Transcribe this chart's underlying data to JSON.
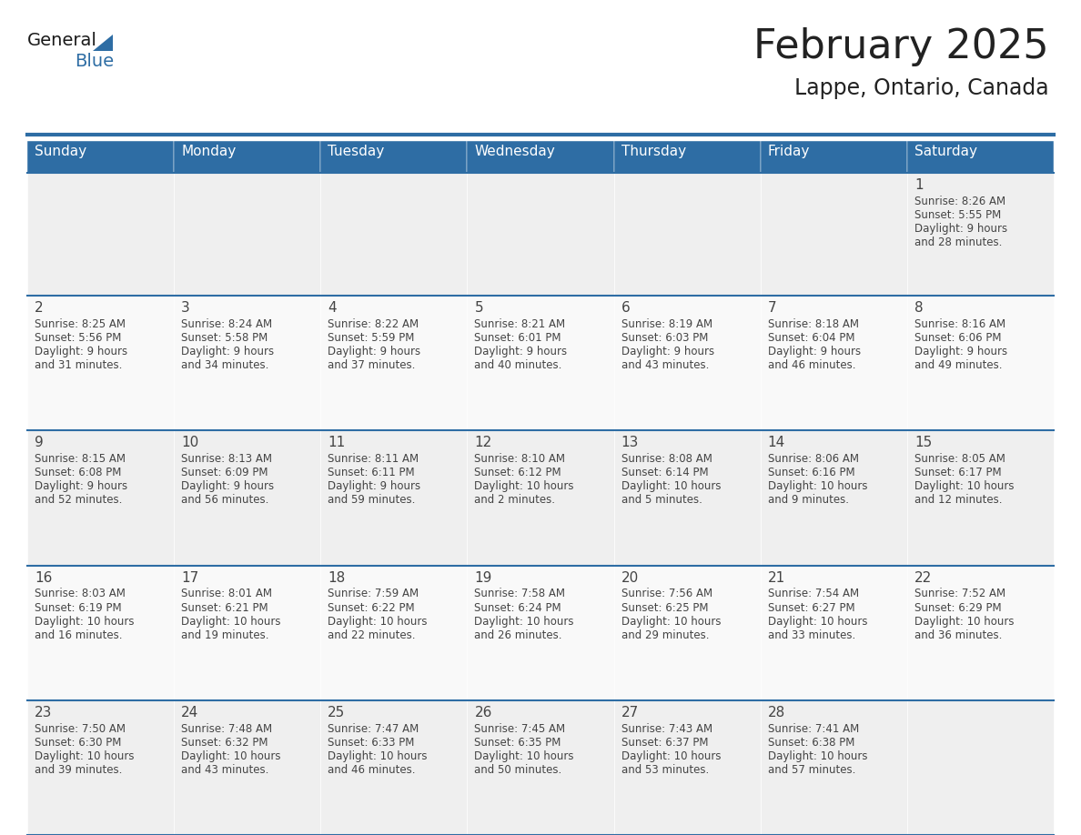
{
  "title": "February 2025",
  "subtitle": "Lappe, Ontario, Canada",
  "header_bg": "#2E6DA4",
  "header_text_color": "#FFFFFF",
  "cell_bg_odd": "#EFEFEF",
  "cell_bg_even": "#F9F9F9",
  "day_headers": [
    "Sunday",
    "Monday",
    "Tuesday",
    "Wednesday",
    "Thursday",
    "Friday",
    "Saturday"
  ],
  "text_color": "#444444",
  "day_num_color": "#222222",
  "line_color": "#2E6DA4",
  "days": [
    {
      "day": 1,
      "col": 6,
      "row": 0,
      "sunrise": "8:26 AM",
      "sunset": "5:55 PM",
      "daylight": "9 hours and 28 minutes"
    },
    {
      "day": 2,
      "col": 0,
      "row": 1,
      "sunrise": "8:25 AM",
      "sunset": "5:56 PM",
      "daylight": "9 hours and 31 minutes"
    },
    {
      "day": 3,
      "col": 1,
      "row": 1,
      "sunrise": "8:24 AM",
      "sunset": "5:58 PM",
      "daylight": "9 hours and 34 minutes"
    },
    {
      "day": 4,
      "col": 2,
      "row": 1,
      "sunrise": "8:22 AM",
      "sunset": "5:59 PM",
      "daylight": "9 hours and 37 minutes"
    },
    {
      "day": 5,
      "col": 3,
      "row": 1,
      "sunrise": "8:21 AM",
      "sunset": "6:01 PM",
      "daylight": "9 hours and 40 minutes"
    },
    {
      "day": 6,
      "col": 4,
      "row": 1,
      "sunrise": "8:19 AM",
      "sunset": "6:03 PM",
      "daylight": "9 hours and 43 minutes"
    },
    {
      "day": 7,
      "col": 5,
      "row": 1,
      "sunrise": "8:18 AM",
      "sunset": "6:04 PM",
      "daylight": "9 hours and 46 minutes"
    },
    {
      "day": 8,
      "col": 6,
      "row": 1,
      "sunrise": "8:16 AM",
      "sunset": "6:06 PM",
      "daylight": "9 hours and 49 minutes"
    },
    {
      "day": 9,
      "col": 0,
      "row": 2,
      "sunrise": "8:15 AM",
      "sunset": "6:08 PM",
      "daylight": "9 hours and 52 minutes"
    },
    {
      "day": 10,
      "col": 1,
      "row": 2,
      "sunrise": "8:13 AM",
      "sunset": "6:09 PM",
      "daylight": "9 hours and 56 minutes"
    },
    {
      "day": 11,
      "col": 2,
      "row": 2,
      "sunrise": "8:11 AM",
      "sunset": "6:11 PM",
      "daylight": "9 hours and 59 minutes"
    },
    {
      "day": 12,
      "col": 3,
      "row": 2,
      "sunrise": "8:10 AM",
      "sunset": "6:12 PM",
      "daylight": "10 hours and 2 minutes"
    },
    {
      "day": 13,
      "col": 4,
      "row": 2,
      "sunrise": "8:08 AM",
      "sunset": "6:14 PM",
      "daylight": "10 hours and 5 minutes"
    },
    {
      "day": 14,
      "col": 5,
      "row": 2,
      "sunrise": "8:06 AM",
      "sunset": "6:16 PM",
      "daylight": "10 hours and 9 minutes"
    },
    {
      "day": 15,
      "col": 6,
      "row": 2,
      "sunrise": "8:05 AM",
      "sunset": "6:17 PM",
      "daylight": "10 hours and 12 minutes"
    },
    {
      "day": 16,
      "col": 0,
      "row": 3,
      "sunrise": "8:03 AM",
      "sunset": "6:19 PM",
      "daylight": "10 hours and 16 minutes"
    },
    {
      "day": 17,
      "col": 1,
      "row": 3,
      "sunrise": "8:01 AM",
      "sunset": "6:21 PM",
      "daylight": "10 hours and 19 minutes"
    },
    {
      "day": 18,
      "col": 2,
      "row": 3,
      "sunrise": "7:59 AM",
      "sunset": "6:22 PM",
      "daylight": "10 hours and 22 minutes"
    },
    {
      "day": 19,
      "col": 3,
      "row": 3,
      "sunrise": "7:58 AM",
      "sunset": "6:24 PM",
      "daylight": "10 hours and 26 minutes"
    },
    {
      "day": 20,
      "col": 4,
      "row": 3,
      "sunrise": "7:56 AM",
      "sunset": "6:25 PM",
      "daylight": "10 hours and 29 minutes"
    },
    {
      "day": 21,
      "col": 5,
      "row": 3,
      "sunrise": "7:54 AM",
      "sunset": "6:27 PM",
      "daylight": "10 hours and 33 minutes"
    },
    {
      "day": 22,
      "col": 6,
      "row": 3,
      "sunrise": "7:52 AM",
      "sunset": "6:29 PM",
      "daylight": "10 hours and 36 minutes"
    },
    {
      "day": 23,
      "col": 0,
      "row": 4,
      "sunrise": "7:50 AM",
      "sunset": "6:30 PM",
      "daylight": "10 hours and 39 minutes"
    },
    {
      "day": 24,
      "col": 1,
      "row": 4,
      "sunrise": "7:48 AM",
      "sunset": "6:32 PM",
      "daylight": "10 hours and 43 minutes"
    },
    {
      "day": 25,
      "col": 2,
      "row": 4,
      "sunrise": "7:47 AM",
      "sunset": "6:33 PM",
      "daylight": "10 hours and 46 minutes"
    },
    {
      "day": 26,
      "col": 3,
      "row": 4,
      "sunrise": "7:45 AM",
      "sunset": "6:35 PM",
      "daylight": "10 hours and 50 minutes"
    },
    {
      "day": 27,
      "col": 4,
      "row": 4,
      "sunrise": "7:43 AM",
      "sunset": "6:37 PM",
      "daylight": "10 hours and 53 minutes"
    },
    {
      "day": 28,
      "col": 5,
      "row": 4,
      "sunrise": "7:41 AM",
      "sunset": "6:38 PM",
      "daylight": "10 hours and 57 minutes"
    }
  ],
  "num_rows": 5,
  "num_cols": 7,
  "logo_text1": "General",
  "logo_text2": "Blue",
  "logo_text_color1": "#1a1a1a",
  "logo_text_color2": "#2E6DA4",
  "logo_triangle_color": "#2E6DA4"
}
